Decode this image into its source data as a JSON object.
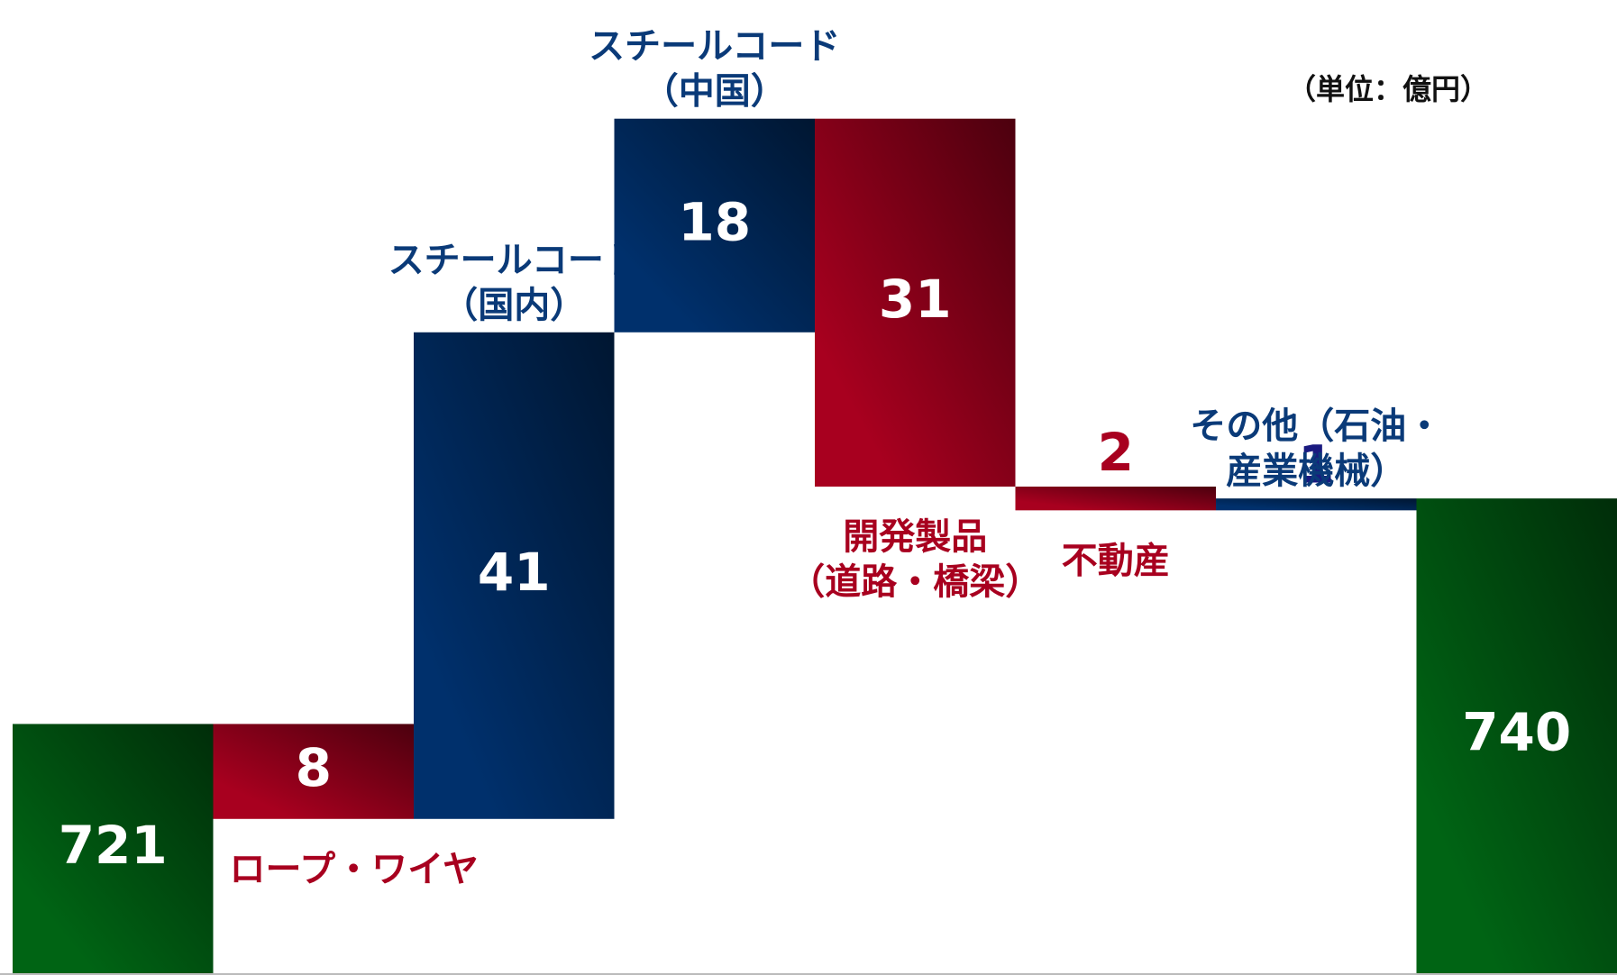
{
  "chart_data": {
    "type": "waterfall",
    "unit_note": "（単位：億円）",
    "categories": [
      null,
      [
        "ロープ・ワイヤ"
      ],
      [
        "スチールコード",
        "（国内）"
      ],
      [
        "スチールコード",
        "（中国）"
      ],
      [
        "開発製品",
        "（道路・橋梁）"
      ],
      [
        "不動産"
      ],
      [
        "その他（石油・",
        "産業機械）"
      ],
      null
    ],
    "values": [
      721,
      -8,
      41,
      18,
      -31,
      -2,
      1,
      740
    ],
    "value_labels": [
      "721",
      "8",
      "41",
      "18",
      "31",
      "2",
      "1",
      "740"
    ],
    "measure": [
      "absolute",
      "relative",
      "relative",
      "relative",
      "relative",
      "relative",
      "relative",
      "total"
    ],
    "colors": [
      "#006414",
      "#a8001f",
      "#00306c",
      "#00306c",
      "#a8001f",
      "#a8001f",
      "#00306c",
      "#006414"
    ],
    "ylim": [
      700,
      782
    ]
  }
}
